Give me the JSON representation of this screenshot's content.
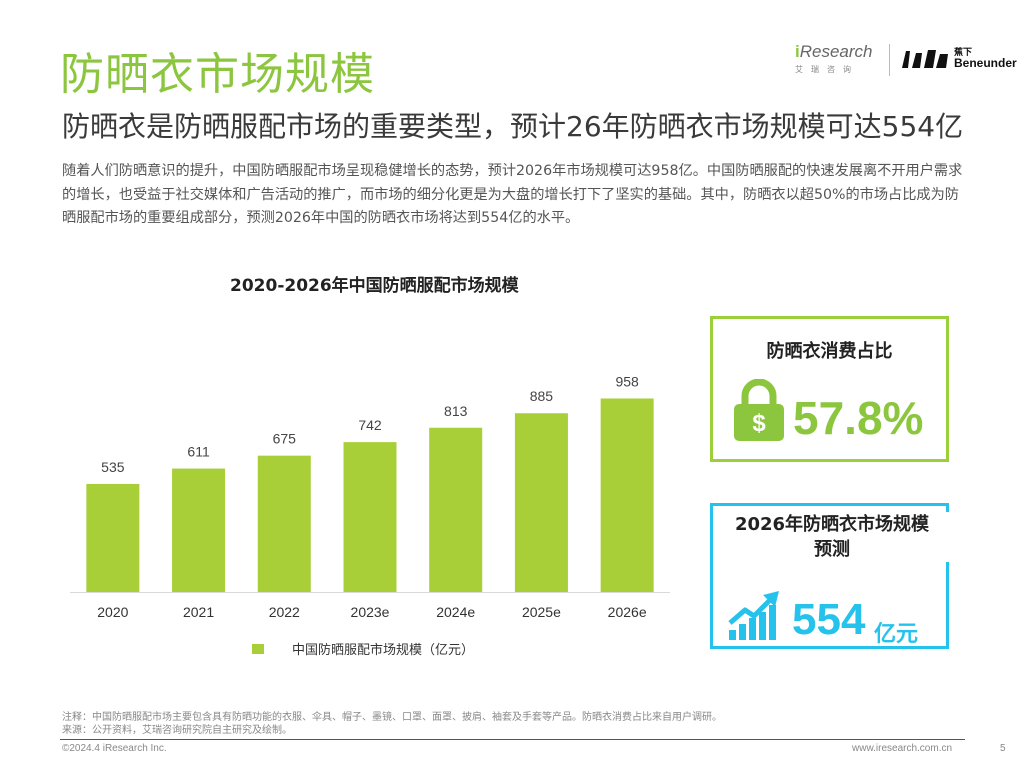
{
  "header": {
    "title": "防晒衣市场规模",
    "subtitle": "防晒衣是防晒服配市场的重要类型，预计26年防晒衣市场规模可达554亿",
    "body": "随着人们防晒意识的提升，中国防晒服配市场呈现稳健增长的态势，预计2026年市场规模可达958亿。中国防晒服配的快速发展离不开用户需求的增长，也受益于社交媒体和广告活动的推广，而市场的细分化更是为大盘的增长打下了坚实的基础。其中，防晒衣以超50%的市场占比成为防晒服配市场的重要组成部分，预测2026年中国的防晒衣市场将达到554亿的水平。"
  },
  "logos": {
    "iresearch_prefix": "i",
    "iresearch_name": "Research",
    "iresearch_cn": "艾瑞咨询",
    "beneunder_cn": "蕉下",
    "beneunder_en": "Beneunder"
  },
  "chart_data": {
    "type": "bar",
    "title": "2020-2026年中国防晒服配市场规模",
    "categories": [
      "2020",
      "2021",
      "2022",
      "2023e",
      "2024e",
      "2025e",
      "2026e"
    ],
    "values": [
      535,
      611,
      675,
      742,
      813,
      885,
      958
    ],
    "series_name": "中国防晒服配市场规模（亿元）",
    "color": "#a8cf38",
    "ylim": [
      0,
      1000
    ],
    "xlabel": "",
    "ylabel": "",
    "legend_position": "bottom",
    "grid": false
  },
  "card_share": {
    "title": "防晒衣消费占比",
    "value": "57.8%",
    "icon": "money-lock-icon",
    "color": "#8cc63f"
  },
  "card_forecast": {
    "title_line1": "2026年防晒衣市场规模",
    "title_line2": "预测",
    "value": "554",
    "unit": "亿元",
    "icon": "growth-chart-icon",
    "color": "#25c3ec"
  },
  "footer": {
    "note": "注释：中国防晒服配市场主要包含具有防晒功能的衣服、伞具、帽子、墨镜、口罩、面罩、披肩、袖套及手套等产品。防晒衣消费占比来自用户调研。",
    "source": "来源：公开资料，艾瑞咨询研究院自主研究及绘制。",
    "copyright": "©2024.4 iResearch Inc.",
    "website": "www.iresearch.com.cn",
    "page": "5"
  }
}
